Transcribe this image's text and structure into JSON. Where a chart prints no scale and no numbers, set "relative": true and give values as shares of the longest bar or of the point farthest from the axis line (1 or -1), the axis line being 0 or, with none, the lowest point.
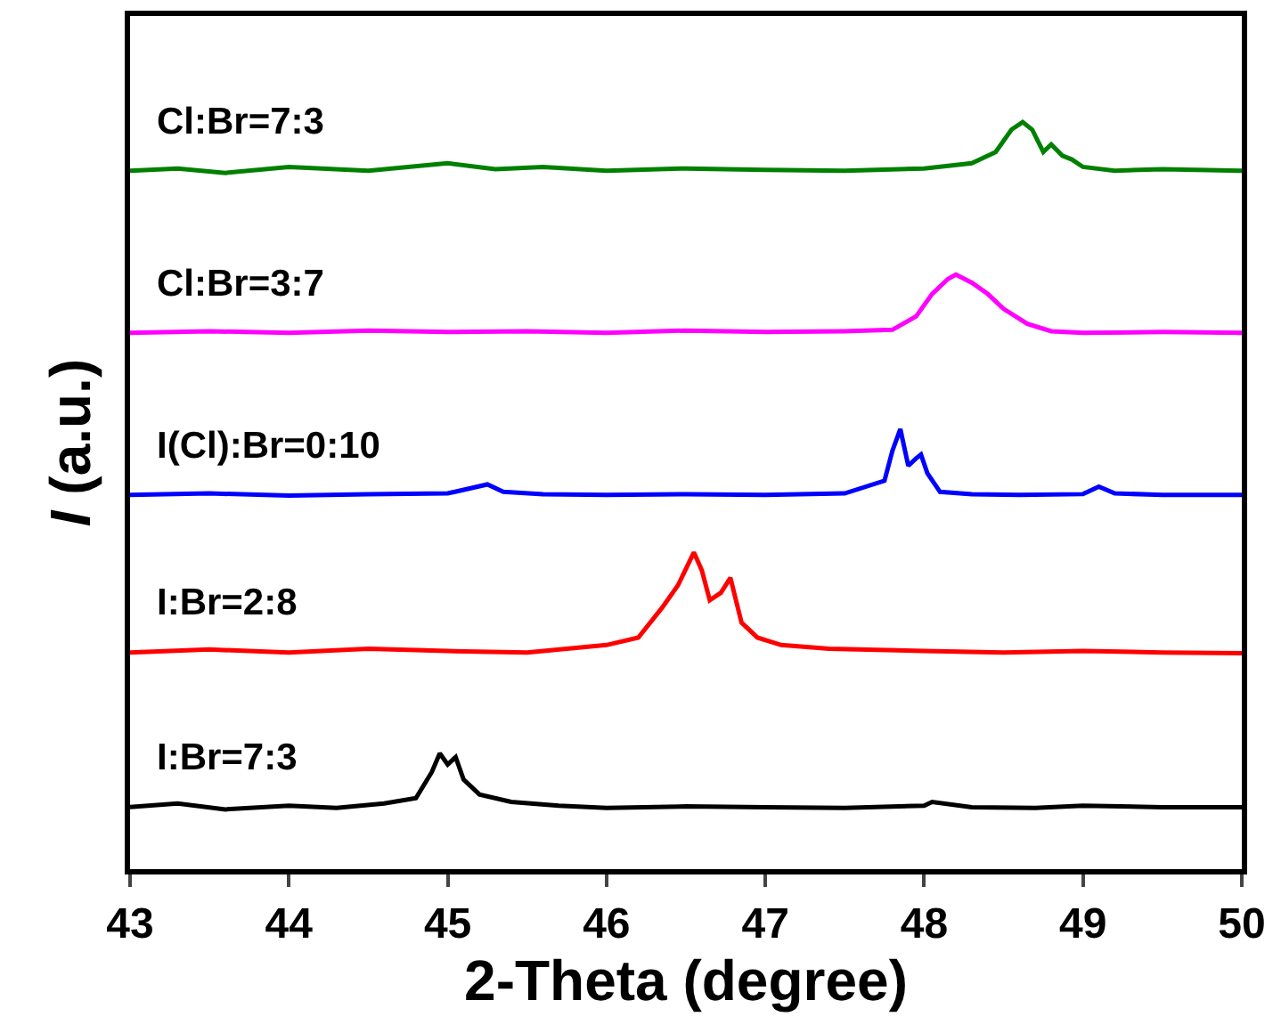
{
  "chart_data": {
    "type": "line",
    "relative": true,
    "xlabel": "2-Theta (degree)",
    "ylabel": "I (a.u.)",
    "xlim": [
      43,
      50
    ],
    "xticks": [
      43,
      44,
      45,
      46,
      47,
      48,
      49,
      50
    ],
    "legend": false,
    "marker": "none",
    "line_style": "solid",
    "series": [
      {
        "name": "I:Br=7:3",
        "color": "#000000",
        "x": [
          43,
          43.3,
          43.6,
          44,
          44.3,
          44.6,
          44.8,
          44.9,
          44.95,
          45.0,
          45.05,
          45.1,
          45.2,
          45.4,
          45.7,
          46,
          46.5,
          47,
          47.5,
          48,
          48.05,
          48.3,
          48.7,
          49,
          49.5,
          50
        ],
        "values": [
          0.083,
          0.088,
          0.08,
          0.085,
          0.082,
          0.088,
          0.095,
          0.13,
          0.155,
          0.14,
          0.15,
          0.12,
          0.1,
          0.09,
          0.085,
          0.082,
          0.084,
          0.083,
          0.082,
          0.085,
          0.09,
          0.083,
          0.082,
          0.085,
          0.083,
          0.083
        ]
      },
      {
        "name": "I:Br=2:8",
        "color": "#ff0000",
        "x": [
          43,
          43.5,
          44,
          44.5,
          45,
          45.5,
          46,
          46.2,
          46.35,
          46.45,
          46.55,
          46.6,
          46.65,
          46.72,
          46.78,
          46.85,
          46.95,
          47.1,
          47.4,
          48,
          48.5,
          49,
          49.5,
          50
        ],
        "values": [
          0.29,
          0.294,
          0.29,
          0.295,
          0.292,
          0.29,
          0.3,
          0.31,
          0.35,
          0.38,
          0.424,
          0.4,
          0.36,
          0.37,
          0.39,
          0.33,
          0.31,
          0.3,
          0.295,
          0.292,
          0.29,
          0.292,
          0.29,
          0.289
        ]
      },
      {
        "name": "I(Cl):Br=0:10",
        "color": "#0000ff",
        "x": [
          43,
          43.5,
          44,
          44.5,
          45,
          45.25,
          45.35,
          45.6,
          46,
          46.5,
          47,
          47.5,
          47.75,
          47.8,
          47.85,
          47.9,
          47.95,
          47.98,
          48.02,
          48.1,
          48.3,
          48.6,
          49,
          49.1,
          49.2,
          49.5,
          50
        ],
        "values": [
          0.501,
          0.503,
          0.5,
          0.502,
          0.503,
          0.515,
          0.505,
          0.502,
          0.501,
          0.502,
          0.501,
          0.503,
          0.52,
          0.56,
          0.589,
          0.54,
          0.55,
          0.555,
          0.53,
          0.505,
          0.502,
          0.501,
          0.502,
          0.512,
          0.503,
          0.501,
          0.501
        ]
      },
      {
        "name": "Cl:Br=3:7",
        "color": "#ff00ff",
        "x": [
          43,
          43.5,
          44,
          44.5,
          45,
          45.5,
          46,
          46.5,
          47,
          47.5,
          47.8,
          47.95,
          48.05,
          48.15,
          48.2,
          48.3,
          48.4,
          48.5,
          48.65,
          48.8,
          49,
          49.5,
          50
        ],
        "values": [
          0.718,
          0.72,
          0.718,
          0.721,
          0.719,
          0.72,
          0.718,
          0.721,
          0.719,
          0.72,
          0.722,
          0.74,
          0.77,
          0.79,
          0.796,
          0.785,
          0.77,
          0.75,
          0.73,
          0.72,
          0.718,
          0.719,
          0.718
        ]
      },
      {
        "name": "Cl:Br=7:3",
        "color": "#008000",
        "x": [
          43,
          43.3,
          43.6,
          44,
          44.5,
          45,
          45.3,
          45.6,
          46,
          46.5,
          47,
          47.5,
          48,
          48.3,
          48.45,
          48.55,
          48.62,
          48.68,
          48.75,
          48.8,
          48.87,
          48.93,
          49,
          49.2,
          49.5,
          50
        ],
        "values": [
          0.935,
          0.938,
          0.932,
          0.94,
          0.935,
          0.945,
          0.937,
          0.94,
          0.935,
          0.938,
          0.936,
          0.935,
          0.938,
          0.945,
          0.96,
          0.99,
          1.0,
          0.99,
          0.96,
          0.97,
          0.955,
          0.95,
          0.94,
          0.935,
          0.937,
          0.935
        ]
      }
    ]
  }
}
